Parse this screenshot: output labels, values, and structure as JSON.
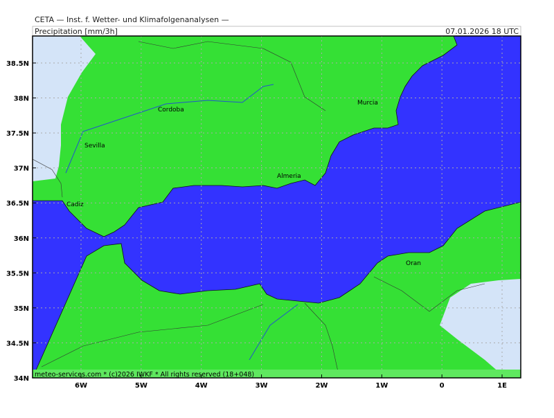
{
  "header": {
    "title": "CETA — Inst. f. Wetter- und Klimafolgenanalysen —",
    "parameter": "Precipitation [mm/3h]",
    "valid_time": "07.01.2026 18 UTC"
  },
  "map": {
    "lat_labels": [
      "38.5N",
      "38N",
      "37.5N",
      "37N",
      "36.5N",
      "36N",
      "35.5N",
      "35N",
      "34.5N",
      "34N"
    ],
    "lon_labels": [
      "6W",
      "5W",
      "4W",
      "3W",
      "2W",
      "1W",
      "0",
      "1E"
    ],
    "cities": [
      "Cordoba",
      "Sevilla",
      "Murcia",
      "Almeria",
      "Cadiz",
      "Oran"
    ],
    "footer": "meteo-services.com * (c)2026 IWKF * All rights reserved (18+048)"
  }
}
